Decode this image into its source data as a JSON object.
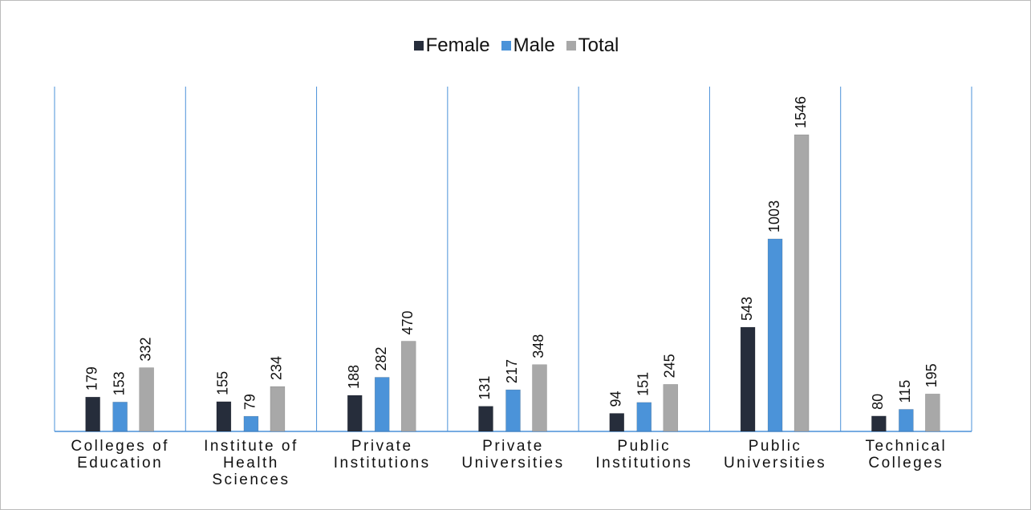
{
  "chart_data": {
    "type": "bar",
    "categories": [
      "Colleges of Education",
      "Institute of Health Sciences",
      "Private Institutions",
      "Private Universities",
      "Public Institutions",
      "Public Universities",
      "Technical Colleges"
    ],
    "series": [
      {
        "name": "Female",
        "color": "#262d3b",
        "values": [
          179,
          155,
          188,
          131,
          94,
          543,
          80
        ]
      },
      {
        "name": "Male",
        "color": "#4b93d9",
        "values": [
          153,
          79,
          282,
          217,
          151,
          1003,
          115
        ]
      },
      {
        "name": "Total",
        "color": "#a8a8a8",
        "values": [
          332,
          234,
          470,
          348,
          245,
          1546,
          195
        ]
      }
    ]
  }
}
